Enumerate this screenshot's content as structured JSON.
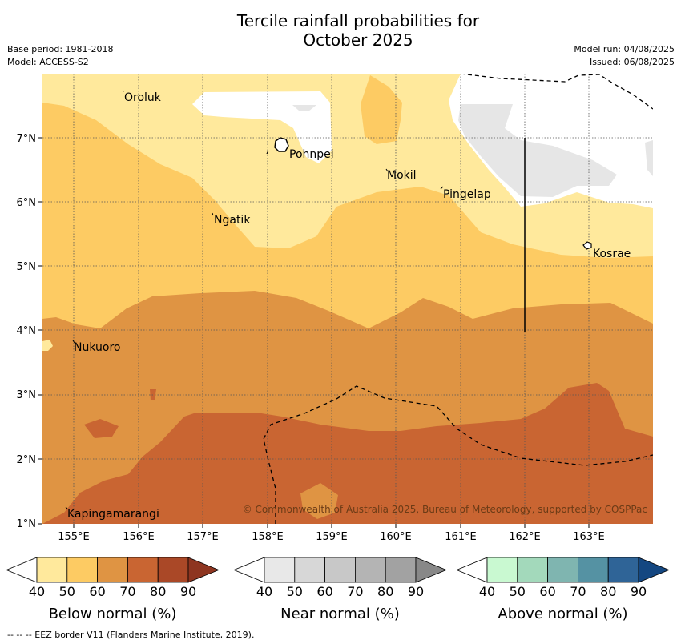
{
  "header": {
    "title_line1": "Tercile rainfall probabilities for",
    "title_line2": "October 2025",
    "base_period": "Base period: 1981-2018",
    "model": "Model: ACCESS-S2",
    "model_run": "Model run: 04/08/2025",
    "issued": "Issued: 06/08/2025"
  },
  "map": {
    "lon_ticks": [
      "155°E",
      "156°E",
      "157°E",
      "158°E",
      "159°E",
      "160°E",
      "161°E",
      "162°E",
      "163°E"
    ],
    "lat_ticks": [
      "1°N",
      "2°N",
      "3°N",
      "4°N",
      "5°N",
      "6°N",
      "7°N"
    ],
    "places": [
      {
        "name": "Oroluk"
      },
      {
        "name": "Pohnpei"
      },
      {
        "name": "Mokil"
      },
      {
        "name": "Pingelap"
      },
      {
        "name": "Ngatik"
      },
      {
        "name": "Kosrae"
      },
      {
        "name": "Nukuoro"
      },
      {
        "name": "Kapingamarangi"
      }
    ],
    "copyright": "© Commonwealth of Australia 2025, Bureau of Meteorology, supported by COSPPac"
  },
  "colorbars": [
    {
      "title": "Below normal (%)",
      "ticks": [
        "40",
        "50",
        "60",
        "70",
        "80",
        "90"
      ],
      "colors": [
        "#ffe99c",
        "#fdcb63",
        "#df9443",
        "#c96532",
        "#aa4827",
        "#8e3520"
      ]
    },
    {
      "title": "Near normal (%)",
      "ticks": [
        "40",
        "50",
        "60",
        "70",
        "80",
        "90"
      ],
      "colors": [
        "#e8e8e8",
        "#d7d7d7",
        "#c8c8c8",
        "#b4b4b4",
        "#a2a2a2",
        "#888888"
      ]
    },
    {
      "title": "Above normal (%)",
      "ticks": [
        "40",
        "50",
        "60",
        "70",
        "80",
        "90"
      ],
      "colors": [
        "#c9f9d1",
        "#a3d9bb",
        "#7fb5b0",
        "#5592a3",
        "#2f6497",
        "#144781"
      ]
    }
  ],
  "footnote": "--  --  -- EEZ border V11 (Flanders Marine Institute, 2019)."
}
